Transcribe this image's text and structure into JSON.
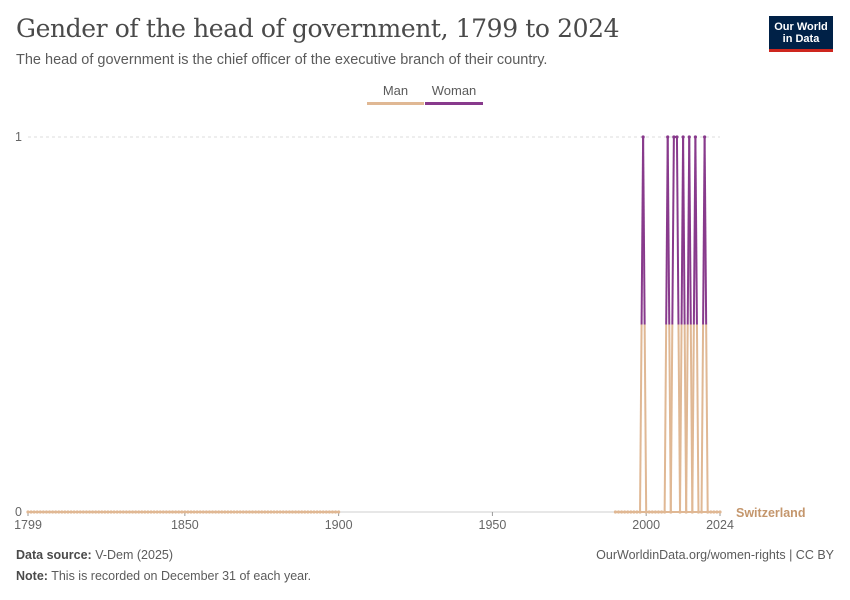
{
  "header": {
    "title": "Gender of the head of government, 1799 to 2024",
    "subtitle": "The head of government is the chief officer of the executive branch of their country.",
    "logo_line1": "Our World",
    "logo_line2": "in Data"
  },
  "legend": [
    {
      "label": "Man",
      "color": "#e0b894"
    },
    {
      "label": "Woman",
      "color": "#883a8c"
    }
  ],
  "footer": {
    "source_label": "Data source:",
    "source_value": "V-Dem (2025)",
    "note_label": "Note:",
    "note_value": "This is recorded on December 31 of each year.",
    "url": "OurWorldinData.org/women-rights | CC BY"
  },
  "chart_data": {
    "type": "line",
    "title": "Gender of the head of government, 1799 to 2024",
    "entity": "Switzerland",
    "xlim": [
      1799,
      2024
    ],
    "ylim": [
      0,
      1
    ],
    "x_ticks": [
      1799,
      1850,
      1900,
      1950,
      2000,
      2024
    ],
    "y_ticks": [
      0,
      1
    ],
    "grid": "horizontal dashed",
    "legend_position": "top-center",
    "series": [
      {
        "name": "Man",
        "color": "#e0b894"
      },
      {
        "name": "Woman",
        "color": "#883a8c"
      }
    ],
    "woman_years": [
      1999,
      2007,
      2009,
      2010,
      2012,
      2014,
      2016,
      2019
    ],
    "coverage": [
      {
        "from": 1799,
        "to": 1900
      },
      {
        "from": 1990,
        "to": 2024
      }
    ]
  }
}
